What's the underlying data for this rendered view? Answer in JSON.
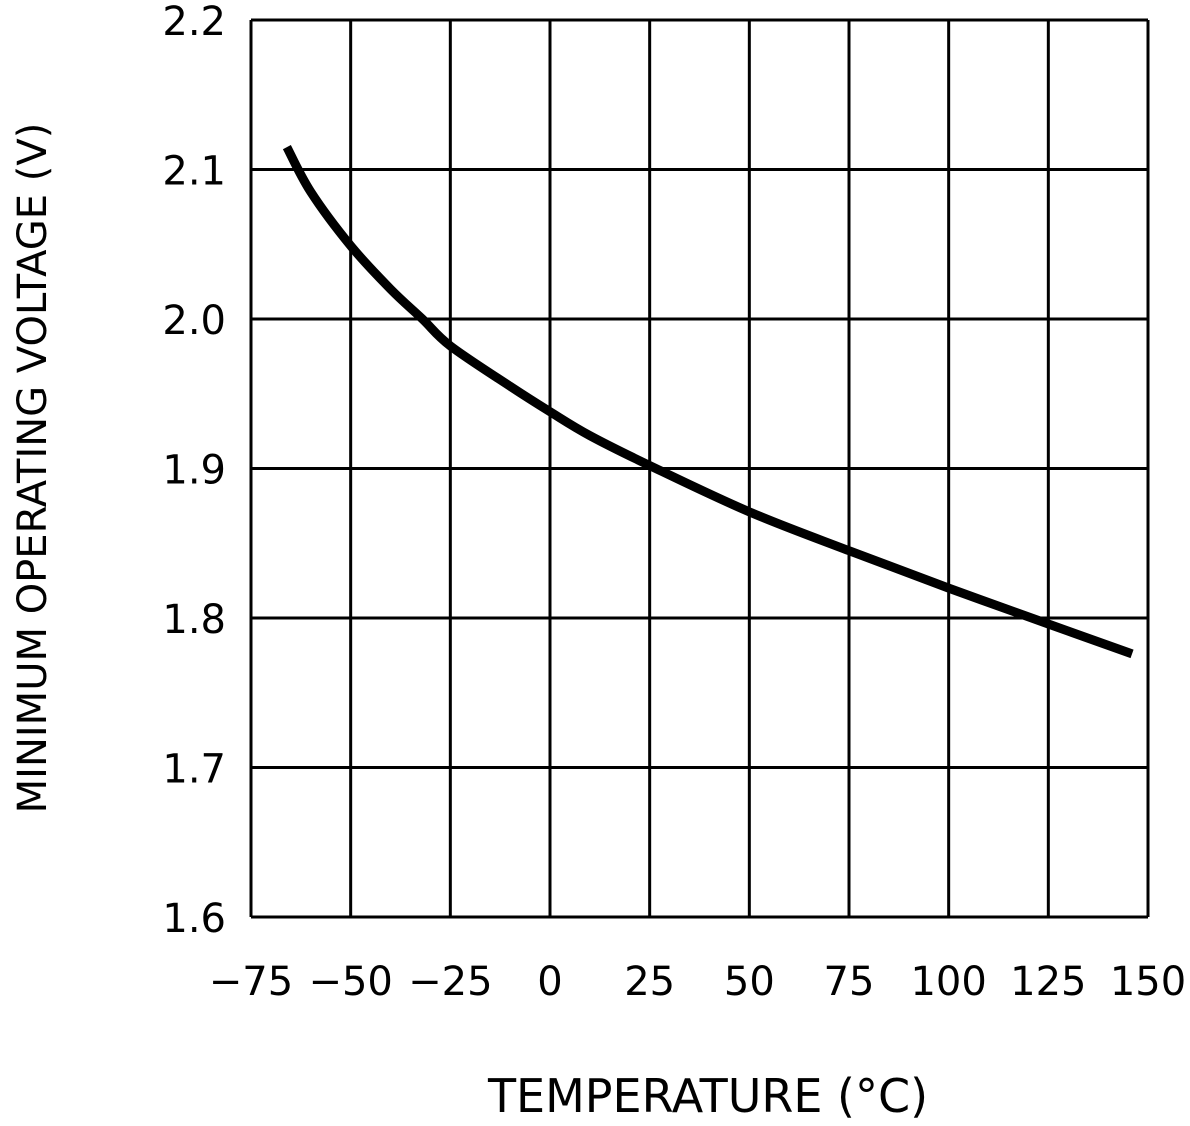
{
  "chart_data": {
    "type": "line",
    "title": "",
    "xlabel": "TEMPERATURE (°C)",
    "ylabel": "MINIMUM OPERATING VOLTAGE (V)",
    "xlim": [
      -75,
      150
    ],
    "ylim": [
      1.6,
      2.2
    ],
    "xticks": [
      "-75",
      "-50",
      "-25",
      "0",
      "25",
      "50",
      "75",
      "100",
      "125",
      "150"
    ],
    "yticks": [
      "1.6",
      "1.7",
      "1.8",
      "1.9",
      "2.0",
      "2.1",
      "2.2"
    ],
    "grid": true,
    "series": [
      {
        "x": [
          -66,
          -60,
          -50,
          -40,
          -32,
          -25,
          -10,
          0,
          10,
          25,
          50,
          75,
          100,
          125,
          146
        ],
        "y": [
          2.115,
          2.085,
          2.049,
          2.02,
          2.0,
          1.982,
          1.955,
          1.938,
          1.922,
          1.902,
          1.871,
          1.845,
          1.82,
          1.796,
          1.776
        ]
      }
    ]
  }
}
